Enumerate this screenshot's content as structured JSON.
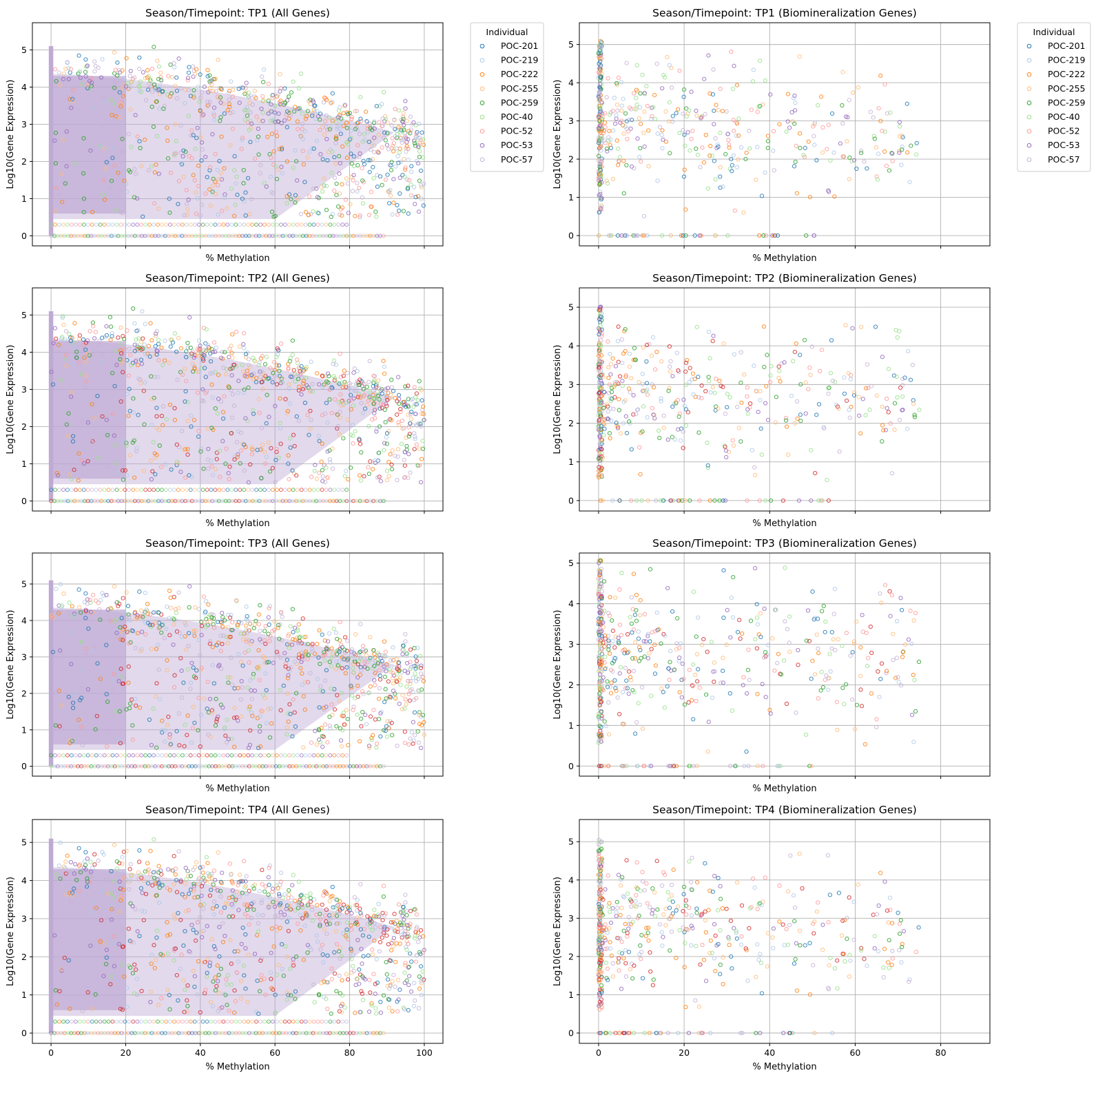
{
  "chart_data": [
    {
      "type": "scatter",
      "title": "Season/Timepoint: TP1 (All Genes)",
      "xlabel": "% Methylation",
      "ylabel": "Log10(Gene Expression)",
      "xlim": [
        -5,
        105
      ],
      "ylim": [
        -0.27,
        5.73
      ],
      "xticks": [
        0,
        20,
        40,
        60,
        80,
        100
      ],
      "yticks": [
        0,
        1,
        2,
        3,
        4,
        5
      ],
      "show_x_tick_labels": false,
      "gene_set": "all",
      "legend": true
    },
    {
      "type": "scatter",
      "title": "Season/Timepoint: TP1 (Biomineralization Genes)",
      "xlabel": "% Methylation",
      "ylabel": "Log10(Gene Expression)",
      "xlim": [
        -4.5,
        91.5
      ],
      "ylim": [
        -0.27,
        5.57
      ],
      "xticks": [
        0,
        20,
        40,
        60,
        80
      ],
      "yticks": [
        0,
        1,
        2,
        3,
        4,
        5
      ],
      "show_x_tick_labels": false,
      "gene_set": "bio",
      "legend": true
    },
    {
      "type": "scatter",
      "title": "Season/Timepoint: TP2 (All Genes)",
      "xlabel": "% Methylation",
      "ylabel": "Log10(Gene Expression)",
      "xlim": [
        -5,
        105
      ],
      "ylim": [
        -0.27,
        5.73
      ],
      "xticks": [
        0,
        20,
        40,
        60,
        80,
        100
      ],
      "yticks": [
        0,
        1,
        2,
        3,
        4,
        5
      ],
      "show_x_tick_labels": false,
      "gene_set": "all",
      "legend": false
    },
    {
      "type": "scatter",
      "title": "Season/Timepoint: TP2 (Biomineralization Genes)",
      "xlabel": "% Methylation",
      "ylabel": "Log10(Gene Expression)",
      "xlim": [
        -4.5,
        91.5
      ],
      "ylim": [
        -0.27,
        5.5
      ],
      "xticks": [
        0,
        20,
        40,
        60,
        80
      ],
      "yticks": [
        0,
        1,
        2,
        3,
        4,
        5
      ],
      "show_x_tick_labels": false,
      "gene_set": "bio",
      "legend": false
    },
    {
      "type": "scatter",
      "title": "Season/Timepoint: TP3 (All Genes)",
      "xlabel": "% Methylation",
      "ylabel": "Log10(Gene Expression)",
      "xlim": [
        -5,
        105
      ],
      "ylim": [
        -0.27,
        5.85
      ],
      "xticks": [
        0,
        20,
        40,
        60,
        80,
        100
      ],
      "yticks": [
        0,
        1,
        2,
        3,
        4,
        5
      ],
      "show_x_tick_labels": false,
      "gene_set": "all",
      "legend": false
    },
    {
      "type": "scatter",
      "title": "Season/Timepoint: TP3 (Biomineralization Genes)",
      "xlabel": "% Methylation",
      "ylabel": "Log10(Gene Expression)",
      "xlim": [
        -4.5,
        91.5
      ],
      "ylim": [
        -0.25,
        5.25
      ],
      "xticks": [
        0,
        20,
        40,
        60,
        80
      ],
      "yticks": [
        0,
        1,
        2,
        3,
        4,
        5
      ],
      "show_x_tick_labels": false,
      "gene_set": "bio",
      "legend": false
    },
    {
      "type": "scatter",
      "title": "Season/Timepoint: TP4 (All Genes)",
      "xlabel": "% Methylation",
      "ylabel": "Log10(Gene Expression)",
      "xlim": [
        -5,
        105
      ],
      "ylim": [
        -0.27,
        5.6
      ],
      "xticks": [
        0,
        20,
        40,
        60,
        80,
        100
      ],
      "yticks": [
        0,
        1,
        2,
        3,
        4,
        5
      ],
      "show_x_tick_labels": true,
      "gene_set": "all",
      "legend": false
    },
    {
      "type": "scatter",
      "title": "Season/Timepoint: TP4 (Biomineralization Genes)",
      "xlabel": "% Methylation",
      "ylabel": "Log10(Gene Expression)",
      "xlim": [
        -4.5,
        91.5
      ],
      "ylim": [
        -0.27,
        5.58
      ],
      "xticks": [
        0,
        20,
        40,
        60,
        80
      ],
      "yticks": [
        0,
        1,
        2,
        3,
        4,
        5
      ],
      "show_x_tick_labels": true,
      "gene_set": "bio",
      "legend": false
    }
  ],
  "legend": {
    "title": "Individual",
    "entries": [
      {
        "name": "POC-201",
        "color": "#1f77b4"
      },
      {
        "name": "POC-219",
        "color": "#aec7e8"
      },
      {
        "name": "POC-222",
        "color": "#ff7f0e"
      },
      {
        "name": "POC-255",
        "color": "#ffbb78"
      },
      {
        "name": "POC-259",
        "color": "#2ca02c"
      },
      {
        "name": "POC-40",
        "color": "#98df8a"
      },
      {
        "name": "POC-52",
        "color": "#ff9896"
      },
      {
        "name": "POC-53",
        "color": "#9467bd"
      },
      {
        "name": "POC-57",
        "color": "#c5b0d5"
      }
    ]
  },
  "extra_colors": {
    "red_series": "#d62728",
    "fill_mass": "#bfaad4"
  }
}
